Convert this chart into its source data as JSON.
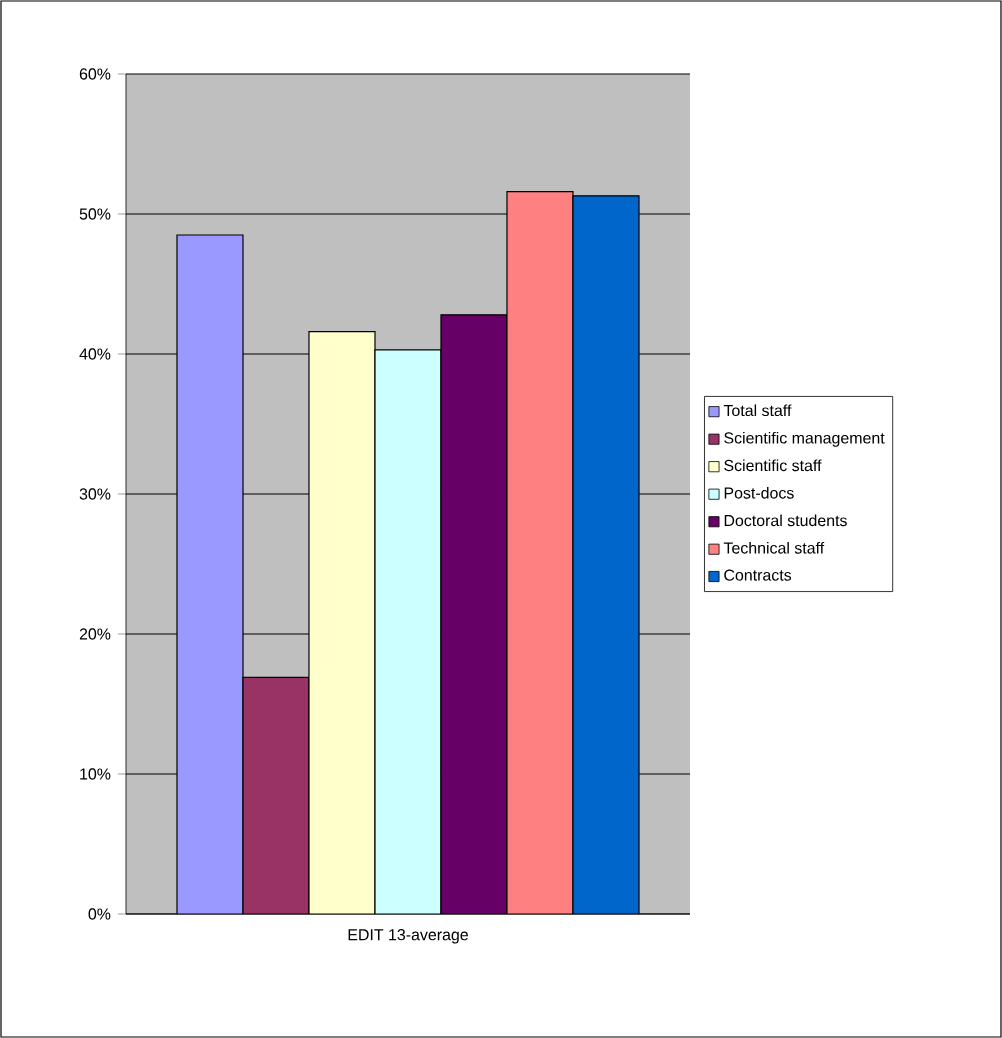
{
  "chart_data": {
    "type": "bar",
    "categories": [
      "EDIT 13-average"
    ],
    "series": [
      {
        "name": "Total staff",
        "color": "#9999ff",
        "values": [
          48.5
        ]
      },
      {
        "name": "Scientific management",
        "color": "#993366",
        "values": [
          16.9
        ]
      },
      {
        "name": "Scientific staff",
        "color": "#ffffcc",
        "values": [
          41.6
        ]
      },
      {
        "name": "Post-docs",
        "color": "#ccffff",
        "values": [
          40.3
        ]
      },
      {
        "name": "Doctoral students",
        "color": "#660066",
        "values": [
          42.8
        ]
      },
      {
        "name": "Technical staff",
        "color": "#ff8080",
        "values": [
          51.6
        ]
      },
      {
        "name": "Contracts",
        "color": "#0066cc",
        "values": [
          51.3
        ]
      }
    ],
    "ylim": [
      0,
      60
    ],
    "yticks": [
      {
        "value": 0,
        "label": "0%"
      },
      {
        "value": 10,
        "label": "10%"
      },
      {
        "value": 20,
        "label": "20%"
      },
      {
        "value": 30,
        "label": "30%"
      },
      {
        "value": 40,
        "label": "40%"
      },
      {
        "value": 50,
        "label": "50%"
      },
      {
        "value": 60,
        "label": "60%"
      }
    ],
    "grid": "y",
    "legend": "right"
  }
}
